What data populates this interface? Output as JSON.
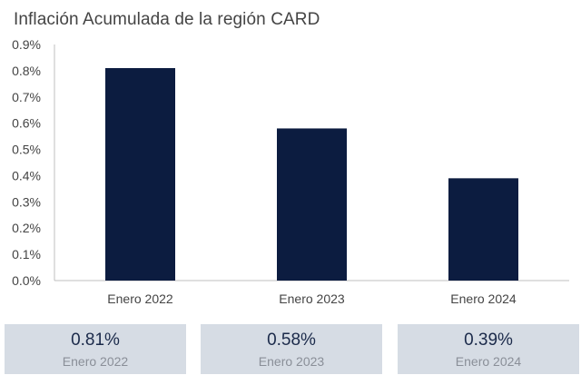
{
  "chart_data": {
    "type": "bar",
    "title": "Inflación Acumulada de la región CARD",
    "categories": [
      "Enero 2022",
      "Enero 2023",
      "Enero 2024"
    ],
    "values": [
      0.81,
      0.58,
      0.39
    ],
    "ylim": [
      0,
      0.9
    ],
    "yticks": [
      "0.0%",
      "0.1%",
      "0.2%",
      "0.3%",
      "0.4%",
      "0.5%",
      "0.6%",
      "0.7%",
      "0.8%",
      "0.9%"
    ],
    "ytick_values": [
      0,
      0.1,
      0.2,
      0.3,
      0.4,
      0.5,
      0.6,
      0.7,
      0.8,
      0.9
    ],
    "xlabel": "",
    "ylabel": "",
    "bar_color": "#0c1c40",
    "grid": false
  },
  "cards": [
    {
      "value": "0.81%",
      "label": "Enero 2022"
    },
    {
      "value": "0.58%",
      "label": "Enero 2023"
    },
    {
      "value": "0.39%",
      "label": "Enero 2024"
    }
  ],
  "colors": {
    "card_bg": "#d6dce4",
    "card_value": "#1b2a4a",
    "card_label": "#8a8f98"
  }
}
